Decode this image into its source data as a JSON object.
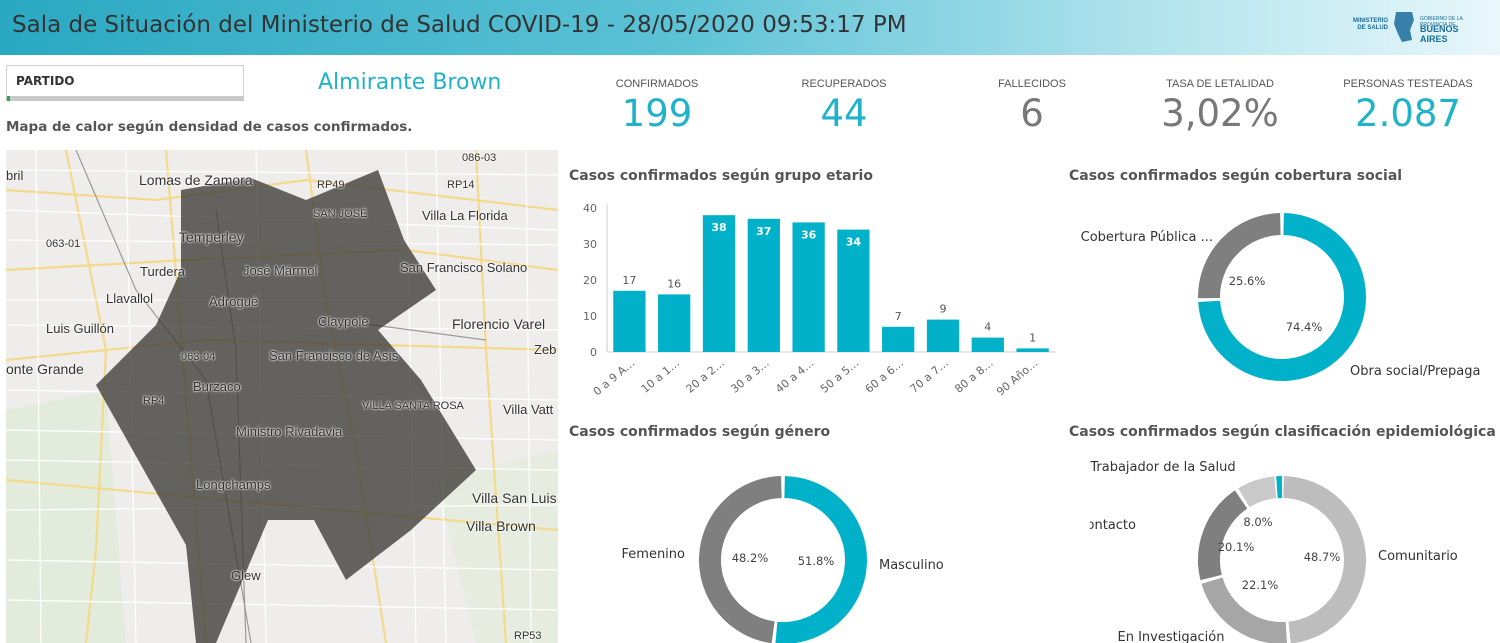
{
  "header": {
    "title": "Sala de Situación del Ministerio de Salud COVID-19 - 28/05/2020 09:53:17 PM"
  },
  "logo": {
    "ministry": "MINISTERIO DE SALUD",
    "gov_line": "GOBIERNO DE LA PROVINCIA DE",
    "province": "BUENOS AIRES"
  },
  "filter": {
    "label": "PARTIDO"
  },
  "municipality": "Almirante Brown",
  "map": {
    "title": "Mapa de calor según densidad de casos confirmados.",
    "places": [
      "086-03",
      "bril",
      "Lomas de Zamora",
      "RP49",
      "RP14",
      "SAN JOSÉ",
      "Villa La Florida",
      "063-01",
      "Temperley",
      "Turdera",
      "José Mármol",
      "San Francisco Solano",
      "Llavallol",
      "Adrogué",
      "Luis Guillón",
      "Claypole",
      "Florencio Varel",
      "Zeb",
      "063-04",
      "San Francisco de Asís",
      "onte Grande",
      "Burzaco",
      "RP4",
      "VILLA SANTA ROSA",
      "Villa Vatt",
      "Ministro Rivadavia",
      "Longchamps",
      "Villa San Luis",
      "Villa Brown",
      "Glew",
      "RP53"
    ]
  },
  "kpis": [
    {
      "label": "CONFIRMADOS",
      "value": "199",
      "color": "#20b2c8"
    },
    {
      "label": "RECUPERADOS",
      "value": "44",
      "color": "#20b2c8"
    },
    {
      "label": "FALLECIDOS",
      "value": "6",
      "color": "#777777"
    },
    {
      "label": "TASA DE LETALIDAD",
      "value": "3,02%",
      "color": "#777777"
    },
    {
      "label": "PERSONAS TESTEADAS",
      "value": "2.087",
      "color": "#20b2c8"
    }
  ],
  "chart_data": [
    {
      "type": "bar",
      "title": "Casos confirmados según grupo etario",
      "categories": [
        "0 a 9 A…",
        "10 a 1…",
        "20 a 2…",
        "30 a 3…",
        "40 a 4…",
        "50 a 5…",
        "60 a 6…",
        "70 a 7…",
        "80 a 8…",
        "90 Año…"
      ],
      "values": [
        17,
        16,
        38,
        37,
        36,
        34,
        7,
        9,
        4,
        1
      ],
      "ylim": [
        0,
        40
      ],
      "yticks": [
        0,
        10,
        20,
        30,
        40
      ],
      "color": "#00b1c9"
    },
    {
      "type": "pie",
      "title": "Casos confirmados según cobertura social",
      "labels": [
        "Obra social/Prepaga",
        "Cobertura Pública ..."
      ],
      "values": [
        74.4,
        25.6
      ],
      "value_labels": [
        "74.4%",
        "25.6%"
      ],
      "colors": [
        "#00b1c9",
        "#7f7f7f"
      ]
    },
    {
      "type": "pie",
      "title": "Casos confirmados según género",
      "labels": [
        "Masculino",
        "Femenino"
      ],
      "values": [
        51.8,
        48.2
      ],
      "value_labels": [
        "51.8%",
        "48.2%"
      ],
      "colors": [
        "#00b1c9",
        "#7f7f7f"
      ]
    },
    {
      "type": "pie",
      "title": "Casos confirmados según clasificación epidemiológica",
      "labels": [
        "Trabajador de la Salud",
        "Comunitario",
        "En Investigación",
        "Contacto",
        ""
      ],
      "values": [
        1.1,
        48.7,
        22.1,
        20.1,
        8.0
      ],
      "value_labels": [
        "",
        "48.7%",
        "22.1%",
        "20.1%",
        "8.0%"
      ],
      "colors": [
        "#00b1c9",
        "#bdbdbd",
        "#a6a6a6",
        "#7f7f7f",
        "#c9c9c9"
      ]
    }
  ]
}
